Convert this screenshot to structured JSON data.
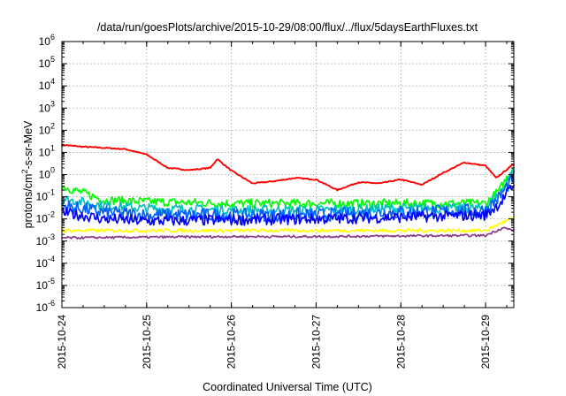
{
  "chart_data": {
    "type": "line",
    "title": "/data/run/goesPlots/archive/2015-10-29/08:00/flux/../flux/5daysEarthFluxes.txt",
    "xlabel": "Coordinated Universal Time (UTC)",
    "ylabel": {
      "prefix": "protons/cm",
      "sup": "2",
      "suffix": "-s-sr-MeV"
    },
    "yscale": "log",
    "ylim_exp": [
      -6,
      6
    ],
    "y_ticks": [
      {
        "base": "10",
        "exp": "-6"
      },
      {
        "base": "10",
        "exp": "-5"
      },
      {
        "base": "10",
        "exp": "-4"
      },
      {
        "base": "10",
        "exp": "-3"
      },
      {
        "base": "10",
        "exp": "-2"
      },
      {
        "base": "10",
        "exp": "-1"
      },
      {
        "base": "10",
        "exp": "0"
      },
      {
        "base": "10",
        "exp": "1"
      },
      {
        "base": "10",
        "exp": "2"
      },
      {
        "base": "10",
        "exp": "3"
      },
      {
        "base": "10",
        "exp": "4"
      },
      {
        "base": "10",
        "exp": "5"
      },
      {
        "base": "10",
        "exp": "6"
      }
    ],
    "x_range": [
      "2015-10-24 00:00",
      "2015-10-29 08:00"
    ],
    "x_ticks": [
      "2015-10-24",
      "2015-10-25",
      "2015-10-26",
      "2015-10-27",
      "2015-10-28",
      "2015-10-29"
    ],
    "grid": true,
    "series": [
      {
        "color": "#ff0000",
        "noise": 0.025,
        "points": [
          [
            "2015-10-24 00:00",
            22
          ],
          [
            "2015-10-24 06:00",
            18
          ],
          [
            "2015-10-24 12:00",
            16
          ],
          [
            "2015-10-24 18:00",
            14
          ],
          [
            "2015-10-25 00:00",
            8
          ],
          [
            "2015-10-25 06:00",
            2
          ],
          [
            "2015-10-25 12:00",
            1.6
          ],
          [
            "2015-10-25 18:00",
            2
          ],
          [
            "2015-10-25 20:00",
            5
          ],
          [
            "2015-10-26 00:00",
            1.5
          ],
          [
            "2015-10-26 06:00",
            0.4
          ],
          [
            "2015-10-26 12:00",
            0.5
          ],
          [
            "2015-10-26 18:00",
            0.7
          ],
          [
            "2015-10-27 00:00",
            0.6
          ],
          [
            "2015-10-27 06:00",
            0.2
          ],
          [
            "2015-10-27 12:00",
            0.45
          ],
          [
            "2015-10-27 18:00",
            0.4
          ],
          [
            "2015-10-28 00:00",
            0.6
          ],
          [
            "2015-10-28 06:00",
            0.35
          ],
          [
            "2015-10-28 12:00",
            1.2
          ],
          [
            "2015-10-28 18:00",
            3.5
          ],
          [
            "2015-10-29 00:00",
            2.5
          ],
          [
            "2015-10-29 03:00",
            0.7
          ],
          [
            "2015-10-29 08:00",
            3
          ]
        ]
      },
      {
        "color": "#00ff00",
        "noise": 0.2,
        "points": [
          [
            "2015-10-24 00:00",
            0.3
          ],
          [
            "2015-10-24 06:00",
            0.15
          ],
          [
            "2015-10-24 12:00",
            0.07
          ],
          [
            "2015-10-25 00:00",
            0.06
          ],
          [
            "2015-10-26 00:00",
            0.05
          ],
          [
            "2015-10-27 00:00",
            0.05
          ],
          [
            "2015-10-28 00:00",
            0.05
          ],
          [
            "2015-10-29 00:00",
            0.05
          ],
          [
            "2015-10-29 04:00",
            0.2
          ],
          [
            "2015-10-29 08:00",
            2.5
          ]
        ]
      },
      {
        "color": "#00bfbf",
        "noise": 0.22,
        "points": [
          [
            "2015-10-24 00:00",
            0.08
          ],
          [
            "2015-10-24 12:00",
            0.04
          ],
          [
            "2015-10-25 00:00",
            0.03
          ],
          [
            "2015-10-26 00:00",
            0.025
          ],
          [
            "2015-10-27 00:00",
            0.025
          ],
          [
            "2015-10-28 00:00",
            0.03
          ],
          [
            "2015-10-29 00:00",
            0.03
          ],
          [
            "2015-10-29 04:00",
            0.15
          ],
          [
            "2015-10-29 08:00",
            1.5
          ]
        ]
      },
      {
        "color": "#0060ff",
        "noise": 0.3,
        "points": [
          [
            "2015-10-24 00:00",
            0.04
          ],
          [
            "2015-10-24 12:00",
            0.02
          ],
          [
            "2015-10-25 00:00",
            0.015
          ],
          [
            "2015-10-26 00:00",
            0.015
          ],
          [
            "2015-10-27 00:00",
            0.015
          ],
          [
            "2015-10-28 00:00",
            0.02
          ],
          [
            "2015-10-29 00:00",
            0.025
          ],
          [
            "2015-10-29 04:00",
            0.1
          ],
          [
            "2015-10-29 08:00",
            0.8
          ]
        ]
      },
      {
        "color": "#0000ff",
        "noise": 0.25,
        "points": [
          [
            "2015-10-24 00:00",
            0.02
          ],
          [
            "2015-10-24 12:00",
            0.01
          ],
          [
            "2015-10-25 00:00",
            0.008
          ],
          [
            "2015-10-26 00:00",
            0.009
          ],
          [
            "2015-10-27 00:00",
            0.01
          ],
          [
            "2015-10-28 00:00",
            0.012
          ],
          [
            "2015-10-29 00:00",
            0.015
          ],
          [
            "2015-10-29 04:00",
            0.05
          ],
          [
            "2015-10-29 08:00",
            0.35
          ]
        ]
      },
      {
        "color": "#ffff00",
        "noise": 0.08,
        "points": [
          [
            "2015-10-24 00:00",
            0.003
          ],
          [
            "2015-10-25 00:00",
            0.003
          ],
          [
            "2015-10-26 00:00",
            0.003
          ],
          [
            "2015-10-27 00:00",
            0.003
          ],
          [
            "2015-10-28 00:00",
            0.003
          ],
          [
            "2015-10-29 00:00",
            0.003
          ],
          [
            "2015-10-29 04:00",
            0.006
          ],
          [
            "2015-10-29 08:00",
            0.011
          ]
        ]
      },
      {
        "color": "#8b3a8b",
        "noise": 0.05,
        "points": [
          [
            "2015-10-24 00:00",
            0.0014
          ],
          [
            "2015-10-25 00:00",
            0.0015
          ],
          [
            "2015-10-26 00:00",
            0.0016
          ],
          [
            "2015-10-27 00:00",
            0.0016
          ],
          [
            "2015-10-28 00:00",
            0.0017
          ],
          [
            "2015-10-29 00:00",
            0.0018
          ],
          [
            "2015-10-29 05:00",
            0.004
          ],
          [
            "2015-10-29 08:00",
            0.003
          ]
        ]
      }
    ]
  }
}
